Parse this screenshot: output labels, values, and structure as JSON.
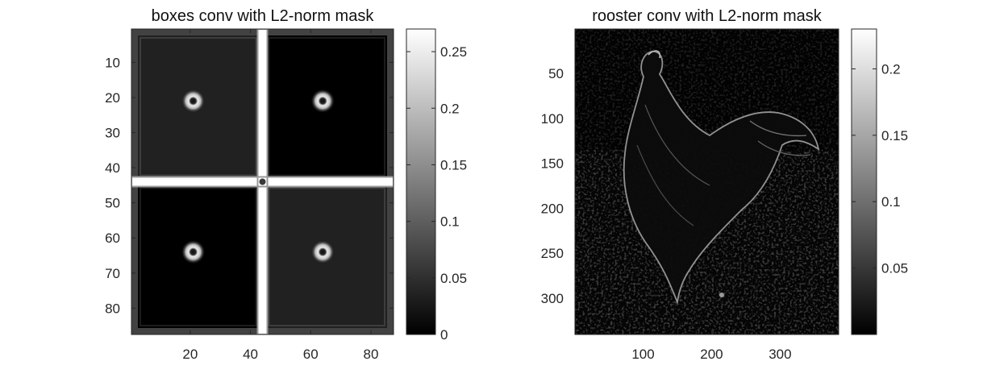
{
  "chart_data": [
    {
      "type": "heatmap",
      "title": "boxes conv with L2-norm mask",
      "colormap": "gray",
      "xlim": [
        0.5,
        87.5
      ],
      "ylim": [
        0.5,
        87.5
      ],
      "y_reversed": true,
      "xticks": [
        20,
        40,
        60,
        80
      ],
      "xtick_labels": [
        "20",
        "40",
        "60",
        "80"
      ],
      "yticks": [
        10,
        20,
        30,
        40,
        50,
        60,
        70,
        80
      ],
      "ytick_labels": [
        "10",
        "20",
        "30",
        "40",
        "50",
        "60",
        "70",
        "80"
      ],
      "colorbar": {
        "range": [
          0,
          0.27
        ],
        "ticks": [
          0,
          0.05,
          0.1,
          0.15,
          0.2,
          0.25
        ],
        "tick_labels": [
          "0",
          "0.05",
          "0.1",
          "0.15",
          "0.2",
          "0.25"
        ]
      },
      "scene": {
        "divider_x": 44,
        "divider_y": 44,
        "quadrant_levels": {
          "top_left": 0.035,
          "top_right": 0.0,
          "bottom_left": 0.0,
          "bottom_right": 0.035
        },
        "divider_level": 0.27,
        "outer_edge_level": 0.07,
        "blobs": [
          {
            "x": 21,
            "y": 21,
            "level": 0.22
          },
          {
            "x": 64,
            "y": 21,
            "level": 0.2
          },
          {
            "x": 21,
            "y": 64,
            "level": 0.24
          },
          {
            "x": 64,
            "y": 64,
            "level": 0.22
          }
        ]
      }
    },
    {
      "type": "heatmap",
      "title": "rooster conv with L2-norm mask",
      "colormap": "gray",
      "xlim": [
        0.5,
        385.5
      ],
      "ylim": [
        0.5,
        340.5
      ],
      "y_reversed": true,
      "xticks": [
        100,
        200,
        300
      ],
      "xtick_labels": [
        "100",
        "200",
        "300"
      ],
      "yticks": [
        50,
        100,
        150,
        200,
        250,
        300
      ],
      "ytick_labels": [
        "50",
        "100",
        "150",
        "200",
        "250",
        "300"
      ],
      "colorbar": {
        "range": [
          0,
          0.23
        ],
        "ticks": [
          0.05,
          0.1,
          0.15,
          0.2
        ],
        "tick_labels": [
          "0.05",
          "0.1",
          "0.15",
          "0.2"
        ]
      }
    }
  ]
}
